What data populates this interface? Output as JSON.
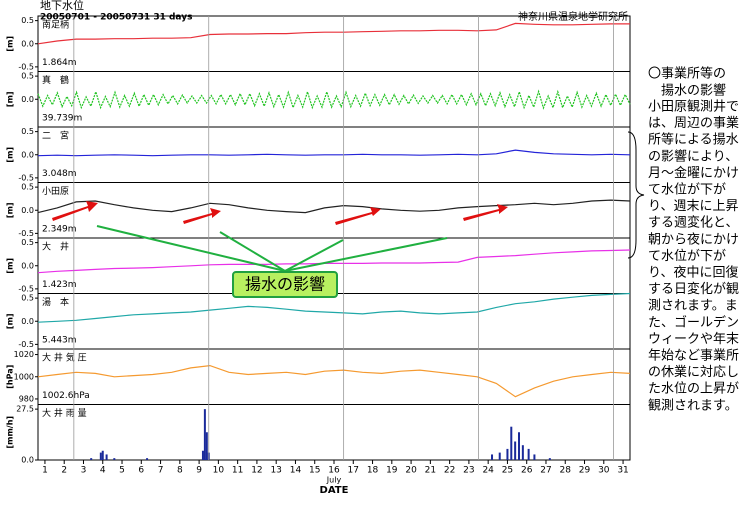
{
  "header": {
    "title": "地下水位",
    "period": "20050701 - 20050731 31 days",
    "org": "神奈川県温泉地学研究所"
  },
  "x_axis": {
    "xlim": [
      0.64,
      31.36
    ],
    "xticks": [
      1,
      2,
      3,
      4,
      5,
      6,
      7,
      8,
      9,
      10,
      11,
      12,
      13,
      14,
      15,
      16,
      17,
      18,
      19,
      20,
      21,
      22,
      23,
      24,
      25,
      26,
      27,
      28,
      29,
      30,
      31
    ],
    "month": "July",
    "label": "DATE",
    "vlines": [
      2.5,
      9.5,
      16.5,
      23.5,
      30.5
    ]
  },
  "chart_data": [
    {
      "type": "line",
      "title": "南足柄",
      "level": "1.864m",
      "unit": "[m]",
      "color": "#e8303a",
      "ylim": [
        -0.6,
        0.6
      ],
      "yticks": [
        0.5,
        {
          "value": 0,
          "label": "0.0"
        },
        -0.5
      ],
      "values": [
        0.0,
        0.06,
        0.1,
        0.1,
        0.11,
        0.11,
        0.12,
        0.12,
        0.13,
        0.2,
        0.21,
        0.21,
        0.22,
        0.22,
        0.24,
        0.25,
        0.25,
        0.26,
        0.27,
        0.28,
        0.28,
        0.29,
        0.29,
        0.28,
        0.3,
        0.44,
        0.42,
        0.41,
        0.41,
        0.42,
        0.43,
        0.43
      ]
    },
    {
      "type": "line",
      "title": "真　鶴",
      "level": "39.739m",
      "unit": "[m]",
      "color": "#22c422",
      "dashed": true,
      "ylim": [
        -0.6,
        0.6
      ],
      "yticks": [
        0.5,
        {
          "value": 0,
          "label": "0.0"
        }
      ],
      "values": [
        0.12,
        -0.15,
        0.08,
        -0.12,
        0.14,
        -0.16,
        0.06,
        -0.14,
        0.15,
        -0.18,
        0.05,
        -0.15,
        0.16,
        -0.18,
        0.06,
        -0.16,
        0.15,
        -0.17,
        0.08,
        -0.15,
        0.13,
        -0.15,
        0.1,
        -0.13,
        0.1,
        -0.12,
        0.1,
        -0.1,
        0.08,
        -0.1,
        0.09,
        -0.08,
        0.07,
        -0.08,
        0.08,
        -0.08,
        0.08,
        -0.1,
        0.1,
        -0.1,
        0.1,
        -0.12,
        0.12,
        -0.12,
        0.12,
        -0.14,
        0.12,
        -0.15,
        0.14,
        -0.16,
        0.1,
        -0.17,
        0.15,
        -0.18,
        0.08,
        -0.17,
        0.16,
        -0.18,
        0.07,
        -0.17,
        0.16,
        -0.17,
        0.07,
        -0.16,
        0.15,
        -0.16,
        0.08,
        -0.15,
        0.13,
        -0.14,
        0.1,
        -0.13,
        0.1,
        -0.12,
        0.1,
        -0.11,
        0.08,
        -0.1,
        0.09,
        -0.09,
        0.07,
        -0.08,
        0.08,
        -0.08,
        0.08,
        -0.1,
        0.1,
        -0.1,
        0.1,
        -0.12,
        0.12,
        -0.12,
        0.12,
        -0.14,
        0.12,
        -0.14,
        0.14,
        -0.16,
        0.1,
        -0.16,
        0.16,
        -0.18,
        0.08,
        -0.17,
        0.17,
        -0.19,
        0.07,
        -0.18,
        0.16,
        -0.18,
        0.07,
        -0.17,
        0.15,
        -0.17,
        0.08,
        -0.15,
        0.13,
        -0.15,
        0.1,
        -0.13,
        0.11,
        -0.13,
        0.1,
        -0.11
      ]
    },
    {
      "type": "line",
      "title": "二　宮",
      "level": "3.048m",
      "unit": "[m]",
      "color": "#2424d8",
      "ylim": [
        -0.6,
        0.6
      ],
      "yticks": [
        0.5,
        {
          "value": 0,
          "label": "0.0"
        },
        -0.5
      ],
      "values": [
        -0.02,
        -0.01,
        -0.02,
        -0.01,
        0,
        -0.01,
        -0.02,
        -0.01,
        0,
        0,
        -0.01,
        0,
        0.01,
        0,
        -0.01,
        0,
        0,
        0.01,
        0,
        0,
        -0.01,
        0,
        0.01,
        0,
        0.02,
        0.1,
        0.05,
        0.02,
        0.01,
        0,
        0.01,
        0
      ]
    },
    {
      "type": "line",
      "title": "小田原",
      "level": "2.349m",
      "unit": "[m]",
      "color": "#222222",
      "ylim": [
        -0.6,
        0.6
      ],
      "yticks": [
        0.5,
        {
          "value": 0,
          "label": "0.0"
        },
        -0.5
      ],
      "values": [
        -0.05,
        0.05,
        0.18,
        0.2,
        0.12,
        0.05,
        0,
        -0.03,
        0.05,
        0.15,
        0.12,
        0.05,
        0,
        -0.03,
        -0.05,
        0.05,
        0.1,
        0.08,
        0.03,
        0,
        -0.02,
        0,
        0.05,
        0.08,
        0.1,
        0.12,
        0.15,
        0.12,
        0.15,
        0.2,
        0.22,
        0.2
      ]
    },
    {
      "type": "line",
      "title": "大　井",
      "level": "1.423m",
      "unit": "[m]",
      "color": "#e830e8",
      "ylim": [
        -0.6,
        0.6
      ],
      "yticks": [
        0.5,
        {
          "value": 0,
          "label": "0.0"
        },
        -0.5
      ],
      "values": [
        -0.15,
        -0.12,
        -0.1,
        -0.08,
        -0.06,
        -0.05,
        -0.04,
        -0.02,
        0,
        0.02,
        0.03,
        0.03,
        0.03,
        0.04,
        0.04,
        0.05,
        0.05,
        0.05,
        0.06,
        0.06,
        0.06,
        0.07,
        0.08,
        0.18,
        0.2,
        0.22,
        0.25,
        0.28,
        0.3,
        0.32,
        0.33,
        0.34
      ]
    },
    {
      "type": "line",
      "title": "湯　本",
      "level": "5.443m",
      "unit": "[m]",
      "color": "#20a8a8",
      "ylim": [
        -0.6,
        0.6
      ],
      "yticks": [
        0.5,
        {
          "value": 0,
          "label": "0.0"
        },
        -0.5
      ],
      "values": [
        -0.02,
        0,
        0.02,
        0.06,
        0.1,
        0.14,
        0.16,
        0.18,
        0.2,
        0.24,
        0.28,
        0.32,
        0.3,
        0.26,
        0.22,
        0.2,
        0.18,
        0.16,
        0.2,
        0.22,
        0.18,
        0.16,
        0.18,
        0.2,
        0.3,
        0.38,
        0.42,
        0.48,
        0.52,
        0.56,
        0.58,
        0.6
      ]
    },
    {
      "type": "line",
      "title": "大 井 気 圧",
      "level": "1002.6hPa",
      "unit": "[hPa]",
      "color": "#f59a30",
      "ylim": [
        975,
        1025
      ],
      "yticks": [
        1020,
        1000,
        980
      ],
      "values": [
        1000,
        1002,
        1004,
        1003,
        1000,
        1001,
        1002,
        1004,
        1008,
        1010,
        1004,
        1002,
        1003,
        1004,
        1002,
        1005,
        1006,
        1004,
        1003,
        1005,
        1006,
        1004,
        1002,
        1000,
        994,
        982,
        990,
        996,
        1000,
        1002,
        1004,
        1003
      ]
    },
    {
      "type": "bar",
      "title": "大 井 雨 量",
      "unit": "[mm/h]",
      "color": "#1a2a9a",
      "ylim": [
        0,
        30
      ],
      "yticks": [
        27.5,
        {
          "value": 0,
          "label": "0.0"
        }
      ],
      "x": [
        3.4,
        3.9,
        4.0,
        4.2,
        4.6,
        6.3,
        9.2,
        9.3,
        9.4,
        9.5,
        24.2,
        24.6,
        25.0,
        25.2,
        25.4,
        25.6,
        25.8,
        26.1,
        26.4,
        27.2
      ],
      "values": [
        1,
        4,
        5,
        3,
        1,
        1,
        5,
        27.5,
        15,
        4,
        3,
        4,
        6,
        18,
        10,
        15,
        8,
        6,
        3,
        1
      ]
    }
  ],
  "annotation": "揚水の影響",
  "sidebar": {
    "heading1": "〇事業所等の",
    "heading2": "揚水の影響",
    "lines": [
      "小田原観測井で",
      "は、周辺の事業",
      "所等による揚水",
      "の影響により、",
      "月～金曜にかけ",
      "て水位が下が",
      "り、週末に上昇",
      "する週変化と、",
      "朝から夜にかけ",
      "て水位が下が",
      "り、夜中に回復",
      "する日変化が観",
      "測されます。ま",
      "た、ゴールデン",
      "ウィークや年末",
      "年始など事業所",
      "の休業に対応し",
      "た水位の上昇が",
      "観測されます。"
    ]
  }
}
